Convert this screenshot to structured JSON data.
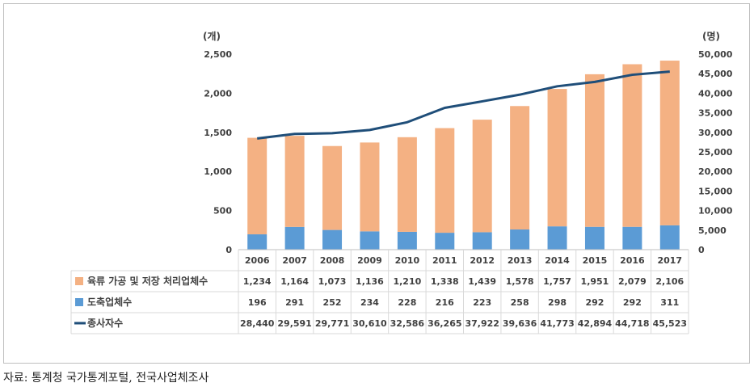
{
  "chart_data": {
    "type": "bar",
    "stacked": true,
    "categories": [
      "2006",
      "2007",
      "2008",
      "2009",
      "2010",
      "2011",
      "2012",
      "2013",
      "2014",
      "2015",
      "2016",
      "2017"
    ],
    "series": [
      {
        "name": "도축업체수",
        "kind": "bar",
        "axis": "left",
        "color": "#5b9bd5",
        "values": [
          196,
          291,
          252,
          234,
          228,
          216,
          223,
          258,
          298,
          292,
          292,
          311
        ]
      },
      {
        "name": "육류 가공 및 저장 처리업체수",
        "kind": "bar",
        "axis": "left",
        "color": "#f4b183",
        "values": [
          1234,
          1164,
          1073,
          1136,
          1210,
          1338,
          1439,
          1578,
          1757,
          1951,
          2079,
          2106
        ]
      },
      {
        "name": "종사자수",
        "kind": "line",
        "axis": "right",
        "color": "#1f4e79",
        "values": [
          28440,
          29591,
          29771,
          30610,
          32586,
          36265,
          37922,
          39636,
          41773,
          42894,
          44718,
          45523
        ]
      }
    ],
    "y_left": {
      "unit": "(개)",
      "ylim": [
        0,
        2500
      ],
      "ticks": [
        "0",
        "500",
        "1,000",
        "1,500",
        "2,000",
        "2,500"
      ]
    },
    "y_right": {
      "unit": "(명)",
      "ylim": [
        0,
        50000
      ],
      "ticks": [
        "0",
        "5,000",
        "10,000",
        "15,000",
        "20,000",
        "25,000",
        "30,000",
        "35,000",
        "40,000",
        "45,000",
        "50,000"
      ]
    },
    "table": {
      "rows": [
        {
          "series": "육류 가공 및 저장 처리업체수",
          "legend": "bar",
          "color": "#f4b183",
          "cells": [
            "1,234",
            "1,164",
            "1,073",
            "1,136",
            "1,210",
            "1,338",
            "1,439",
            "1,578",
            "1,757",
            "1,951",
            "2,079",
            "2,106"
          ]
        },
        {
          "series": "도축업체수",
          "legend": "bar",
          "color": "#5b9bd5",
          "cells": [
            "196",
            "291",
            "252",
            "234",
            "228",
            "216",
            "223",
            "258",
            "298",
            "292",
            "292",
            "311"
          ]
        },
        {
          "series": "종사자수",
          "legend": "line",
          "color": "#1f4e79",
          "cells": [
            "28,440",
            "29,591",
            "29,771",
            "30,610",
            "32,586",
            "36,265",
            "37,922",
            "39,636",
            "41,773",
            "42,894",
            "44,718",
            "45,523"
          ]
        }
      ]
    },
    "grid": true,
    "legend": "data-table"
  },
  "source_text": "자료: 통계청 국가통계포털, 전국사업체조사"
}
